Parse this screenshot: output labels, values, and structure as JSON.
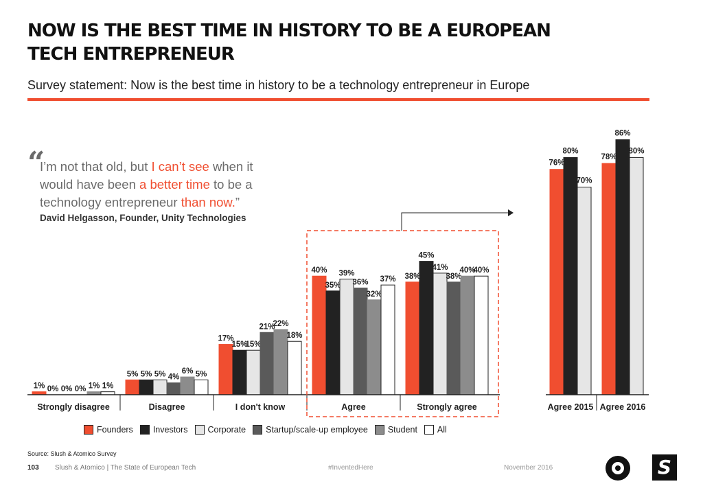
{
  "page": {
    "title": "NOW IS THE BEST TIME IN HISTORY TO BE A EUROPEAN TECH ENTREPRENEUR",
    "subtitle": "Survey statement: Now is the best time in history to be a technology entrepreneur in Europe",
    "accent_color": "#f04e30"
  },
  "quote": {
    "mark": "“",
    "parts": [
      {
        "text": "I’m not that old, but ",
        "highlight": false
      },
      {
        "text": "I can’t see",
        "highlight": true
      },
      {
        "text": " when it would have been ",
        "highlight": false
      },
      {
        "text": "a better time",
        "highlight": true
      },
      {
        "text": " to be a technology entrepreneur ",
        "highlight": false
      },
      {
        "text": "than now.",
        "highlight": true
      },
      {
        "text": "”",
        "highlight": false
      }
    ],
    "author": "David Helgasson, Founder, Unity Technologies"
  },
  "chart_data": [
    {
      "type": "bar",
      "categories": [
        "Strongly disagree",
        "Disagree",
        "I don't know",
        "Agree",
        "Strongly agree"
      ],
      "ylim": [
        0,
        90
      ],
      "series": [
        {
          "name": "Founders",
          "values": [
            1,
            5,
            17,
            40,
            38
          ],
          "labels": [
            "1%",
            "5%",
            "17%",
            "40%",
            "38%"
          ],
          "color": "#f04e30"
        },
        {
          "name": "Investors",
          "values": [
            0,
            5,
            15,
            35,
            45
          ],
          "labels": [
            "0%",
            "5%",
            "15%",
            "35%",
            "45%"
          ],
          "color": "#222222"
        },
        {
          "name": "Corporate",
          "values": [
            0,
            5,
            15,
            39,
            41
          ],
          "labels": [
            "0%",
            "5%",
            "15%",
            "39%",
            "41%"
          ],
          "color": "#e6e6e6"
        },
        {
          "name": "Startup/scale-up employee",
          "values": [
            0,
            4,
            21,
            36,
            38
          ],
          "labels": [
            "0%",
            "4%",
            "21%",
            "36%",
            "38%"
          ],
          "color": "#5a5a5a"
        },
        {
          "name": "Student",
          "values": [
            1,
            6,
            22,
            32,
            40
          ],
          "labels": [
            "1%",
            "6%",
            "22%",
            "32%",
            "40%"
          ],
          "color": "#8c8c8c"
        },
        {
          "name": "All",
          "values": [
            1,
            5,
            18,
            37,
            40
          ],
          "labels": [
            "1%",
            "5%",
            "18%",
            "37%",
            "40%"
          ],
          "color": "#ffffff"
        }
      ],
      "highlight_categories": [
        "Agree",
        "Strongly agree"
      ]
    },
    {
      "type": "bar",
      "categories": [
        "Agree 2015",
        "Agree 2016"
      ],
      "ylim": [
        0,
        90
      ],
      "series": [
        {
          "name": "Founders",
          "values": [
            76,
            78
          ],
          "labels": [
            "76%",
            "78%"
          ],
          "color": "#f04e30"
        },
        {
          "name": "Investors",
          "values": [
            80,
            86
          ],
          "labels": [
            "80%",
            "86%"
          ],
          "color": "#222222"
        },
        {
          "name": "Corporate",
          "values": [
            70,
            80
          ],
          "labels": [
            "70%",
            "80%"
          ],
          "color": "#e6e6e6"
        }
      ]
    }
  ],
  "legend": {
    "items": [
      {
        "name": "Founders",
        "color": "#f04e30"
      },
      {
        "name": "Investors",
        "color": "#222222"
      },
      {
        "name": "Corporate",
        "color": "#e6e6e6"
      },
      {
        "name": "Startup/scale-up employee",
        "color": "#5a5a5a"
      },
      {
        "name": "Student",
        "color": "#8c8c8c"
      },
      {
        "name": "All",
        "color": "#ffffff"
      }
    ]
  },
  "footer": {
    "source": "Source: Slush & Atomico Survey",
    "page_number": "103",
    "publication": "Slush & Atomico  |  The State of European Tech",
    "hashtag": "#InventedHere",
    "date": "November 2016"
  },
  "logos": {
    "slush_icon": "target-logo-icon",
    "atomico_icon": "s-logo-icon",
    "atomico_letter": "S"
  }
}
